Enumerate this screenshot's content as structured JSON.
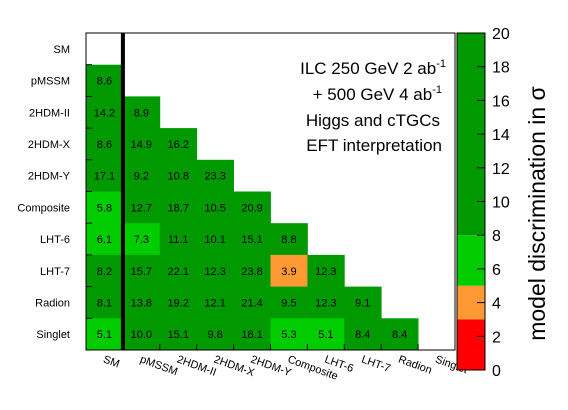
{
  "chart_data": {
    "type": "heatmap",
    "rows": [
      "SM",
      "pMSSM",
      "2HDM-II",
      "2HDM-X",
      "2HDM-Y",
      "Composite",
      "LHT-6",
      "LHT-7",
      "Radion",
      "Singlet"
    ],
    "columns": [
      "SM",
      "pMSSM",
      "2HDM-II",
      "2HDM-X",
      "2HDM-Y",
      "Composite",
      "LHT-6",
      "LHT-7",
      "Radion",
      "Singlet"
    ],
    "values": [
      [
        null,
        null,
        null,
        null,
        null,
        null,
        null,
        null,
        null,
        null
      ],
      [
        8.6,
        null,
        null,
        null,
        null,
        null,
        null,
        null,
        null,
        null
      ],
      [
        14.2,
        8.9,
        null,
        null,
        null,
        null,
        null,
        null,
        null,
        null
      ],
      [
        8.6,
        14.9,
        16.2,
        null,
        null,
        null,
        null,
        null,
        null,
        null
      ],
      [
        17.1,
        9.2,
        10.8,
        23.3,
        null,
        null,
        null,
        null,
        null,
        null
      ],
      [
        5.8,
        12.7,
        18.7,
        10.5,
        20.9,
        null,
        null,
        null,
        null,
        null
      ],
      [
        6.1,
        7.3,
        11.1,
        10.1,
        15.1,
        8.8,
        null,
        null,
        null,
        null
      ],
      [
        8.2,
        15.7,
        22.1,
        12.3,
        23.8,
        3.9,
        12.3,
        null,
        null,
        null
      ],
      [
        8.1,
        13.8,
        19.2,
        12.1,
        21.4,
        9.5,
        12.3,
        9.1,
        null,
        null
      ],
      [
        5.1,
        10.0,
        15.1,
        9.8,
        18.1,
        5.3,
        5.1,
        8.4,
        8.4,
        null
      ]
    ],
    "value_labels": [
      [],
      [
        "8.6"
      ],
      [
        "14.2",
        "8.9"
      ],
      [
        "8.6",
        "14.9",
        "16.2"
      ],
      [
        "17.1",
        "9.2",
        "10.8",
        "23.3"
      ],
      [
        "5.8",
        "12.7",
        "18.7",
        "10.5",
        "20.9"
      ],
      [
        "6.1",
        "7.3",
        "11.1",
        "10.1",
        "15.1",
        "8.8"
      ],
      [
        "8.2",
        "15.7",
        "22.1",
        "12.3",
        "23.8",
        "3.9",
        "12.3"
      ],
      [
        "8.1",
        "13.8",
        "19.2",
        "12.1",
        "21.4",
        "9.5",
        "12.3",
        "9.1"
      ],
      [
        "5.1",
        "10.0",
        "15.1",
        "9.8",
        "18.1",
        "5.3",
        "5.1",
        "8.4",
        "8.4"
      ]
    ],
    "annotation": [
      {
        "parts": [
          {
            "t": "ILC 250 GeV 2 ab"
          },
          {
            "t": "-1",
            "sup": true
          }
        ]
      },
      {
        "parts": [
          {
            "t": "+ 500 GeV 4 ab"
          },
          {
            "t": "-1",
            "sup": true
          }
        ]
      },
      {
        "parts": [
          {
            "t": "Higgs and cTGCs"
          }
        ]
      },
      {
        "parts": [
          {
            "t": "EFT interpretation"
          }
        ]
      }
    ],
    "colorbar": {
      "title": "model discrimination in σ",
      "range": [
        0,
        20
      ],
      "ticks": [
        "0",
        "2",
        "4",
        "6",
        "8",
        "10",
        "12",
        "14",
        "16",
        "18",
        "20"
      ],
      "bins": [
        {
          "from": 0,
          "to": 3,
          "color": "#ff0000"
        },
        {
          "from": 3,
          "to": 5,
          "color": "#ff9933"
        },
        {
          "from": 5,
          "to": 8,
          "color": "#00cc00"
        },
        {
          "from": 8,
          "to": 20,
          "color": "#009900"
        }
      ]
    },
    "divider_after_column": "SM"
  }
}
